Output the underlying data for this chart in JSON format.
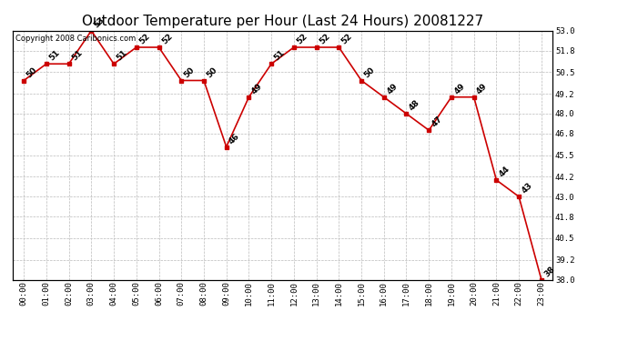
{
  "title": "Outdoor Temperature per Hour (Last 24 Hours) 20081227",
  "copyright": "Copyright 2008 Caribonics.com",
  "hours": [
    "00:00",
    "01:00",
    "02:00",
    "03:00",
    "04:00",
    "05:00",
    "06:00",
    "07:00",
    "08:00",
    "09:00",
    "10:00",
    "11:00",
    "12:00",
    "13:00",
    "14:00",
    "15:00",
    "16:00",
    "17:00",
    "18:00",
    "19:00",
    "20:00",
    "21:00",
    "22:00",
    "23:00"
  ],
  "temps": [
    50,
    51,
    51,
    53,
    51,
    52,
    52,
    50,
    50,
    46,
    49,
    51,
    52,
    52,
    52,
    50,
    49,
    48,
    47,
    49,
    49,
    44,
    43,
    38
  ],
  "line_color": "#cc0000",
  "marker_color": "#cc0000",
  "bg_color": "#ffffff",
  "grid_color": "#bbbbbb",
  "ylim_min": 38.0,
  "ylim_max": 53.0,
  "yticks": [
    38.0,
    39.2,
    40.5,
    41.8,
    43.0,
    44.2,
    45.5,
    46.8,
    48.0,
    49.2,
    50.5,
    51.8,
    53.0
  ],
  "title_fontsize": 11,
  "label_fontsize": 6.5,
  "tick_fontsize": 6.5,
  "copyright_fontsize": 6.0
}
